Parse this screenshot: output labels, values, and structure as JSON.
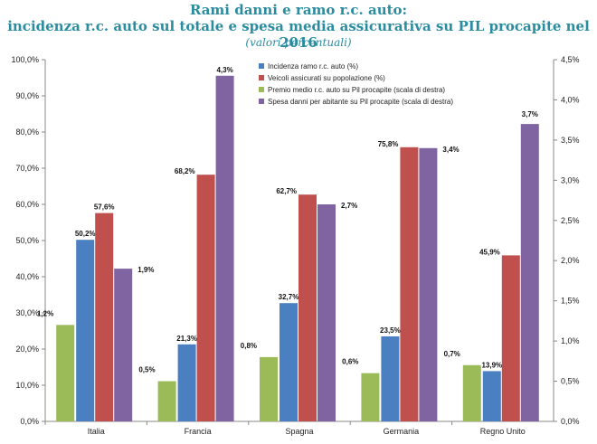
{
  "header": {
    "title_line1": "Rami danni e ramo r.c. auto:",
    "title_line2": "incidenza r.c. auto sul totale e spesa media assicurativa su PIL procapite nel 2016",
    "subtitle": "(valori percentuali)"
  },
  "colors": {
    "title": "#2b8ca0",
    "blue": "#4a7fc1",
    "red": "#c0504d",
    "green": "#9bbb59",
    "purple": "#8064a2"
  },
  "chart_data": {
    "type": "bar",
    "categories": [
      "Italia",
      "Francia",
      "Spagna",
      "Germania",
      "Regno Unito"
    ],
    "left_axis": {
      "ylim": [
        0,
        100
      ],
      "ticks": [
        "0,0%",
        "10,0%",
        "20,0%",
        "30,0%",
        "40,0%",
        "50,0%",
        "60,0%",
        "70,0%",
        "80,0%",
        "90,0%",
        "100,0%"
      ]
    },
    "right_axis": {
      "ylim": [
        0,
        4.5
      ],
      "ticks": [
        "0,0%",
        "0,5%",
        "1,0%",
        "1,5%",
        "2,0%",
        "2,5%",
        "3,0%",
        "3,5%",
        "4,0%",
        "4,5%"
      ]
    },
    "series": [
      {
        "name": "Premio medio r.c. auto su Pil procapite (scala di destra)",
        "axis": "right",
        "color": "#9bbb59",
        "values": [
          1.2,
          0.5,
          0.8,
          0.6,
          0.7
        ],
        "labels": [
          "1,2%",
          "0,5%",
          "0,8%",
          "0,6%",
          "0,7%"
        ]
      },
      {
        "name": "Incidenza ramo r.c. auto (%)",
        "axis": "left",
        "color": "#4a7fc1",
        "values": [
          50.2,
          21.3,
          32.7,
          23.5,
          13.9
        ],
        "labels": [
          "50,2%",
          "21,3%",
          "32,7%",
          "23,5%",
          "13,9%"
        ]
      },
      {
        "name": "Veicoli assicurati su popolazione (%)",
        "axis": "left",
        "color": "#c0504d",
        "values": [
          57.6,
          68.2,
          62.7,
          75.8,
          45.9
        ],
        "labels": [
          "57,6%",
          "68,2%",
          "62,7%",
          "75,8%",
          "45,9%"
        ]
      },
      {
        "name": "Spesa danni per abitante su Pil procapite (scala di destra)",
        "axis": "right",
        "color": "#8064a2",
        "values": [
          1.9,
          4.3,
          2.7,
          3.4,
          3.7
        ],
        "labels": [
          "1,9%",
          "4,3%",
          "2,7%",
          "3,4%",
          "3,7%"
        ]
      }
    ],
    "legend": {
      "placement": "top-center",
      "entries": [
        {
          "label": "Incidenza ramo r.c. auto (%)",
          "color": "#4a7fc1"
        },
        {
          "label": "Veicoli assicurati su popolazione (%)",
          "color": "#c0504d"
        },
        {
          "label": "Premio medio r.c. auto su Pil procapite (scala di destra)",
          "color": "#9bbb59"
        },
        {
          "label": "Spesa danni per abitante su Pil procapite (scala di destra)",
          "color": "#8064a2"
        }
      ]
    },
    "grid": false
  }
}
